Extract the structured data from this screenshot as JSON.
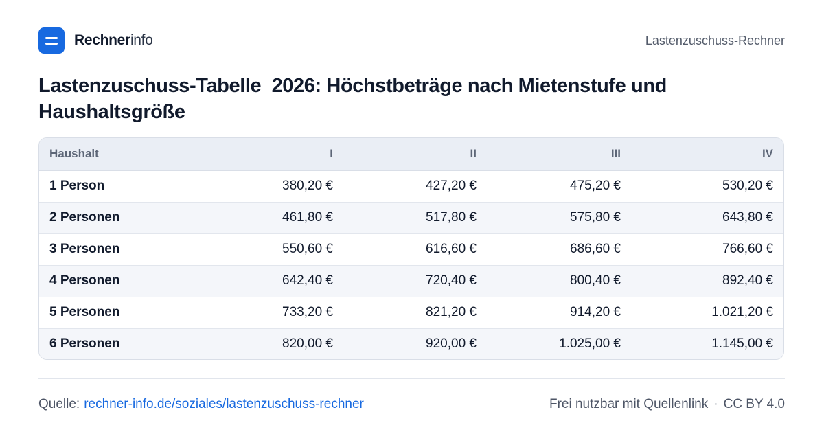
{
  "brand": {
    "name_bold": "Rechner",
    "name_light": "info",
    "tool_name": "Lastenzuschuss-Rechner"
  },
  "title": "Lastenzuschuss-Tabelle  2026: Höchstbeträge nach Mietenstufe und Haushaltsgröße",
  "table": {
    "headers": [
      "Haushalt",
      "I",
      "II",
      "III",
      "IV"
    ],
    "rows": [
      [
        "1 Person",
        "380,20 €",
        "427,20 €",
        "475,20 €",
        "530,20 €"
      ],
      [
        "2 Personen",
        "461,80 €",
        "517,80 €",
        "575,80 €",
        "643,80 €"
      ],
      [
        "3 Personen",
        "550,60 €",
        "616,60 €",
        "686,60 €",
        "766,60 €"
      ],
      [
        "4 Personen",
        "642,40 €",
        "720,40 €",
        "800,40 €",
        "892,40 €"
      ],
      [
        "5 Personen",
        "733,20 €",
        "821,20 €",
        "914,20 €",
        "1.021,20 €"
      ],
      [
        "6 Personen",
        "820,00 €",
        "920,00 €",
        "1.025,00 €",
        "1.145,00 €"
      ]
    ]
  },
  "footer": {
    "source_label": "Quelle:",
    "source_link": "rechner-info.de/soziales/lastenzuschuss-rechner",
    "usage": "Frei nutzbar mit Quellenlink",
    "separator": "·",
    "license": "CC BY 4.0"
  },
  "colors": {
    "accent": "#1769e0",
    "header_bg": "#eaeef5",
    "stripe_bg": "#f4f6fa"
  },
  "icons": {
    "logo": "equals-logo-icon"
  }
}
